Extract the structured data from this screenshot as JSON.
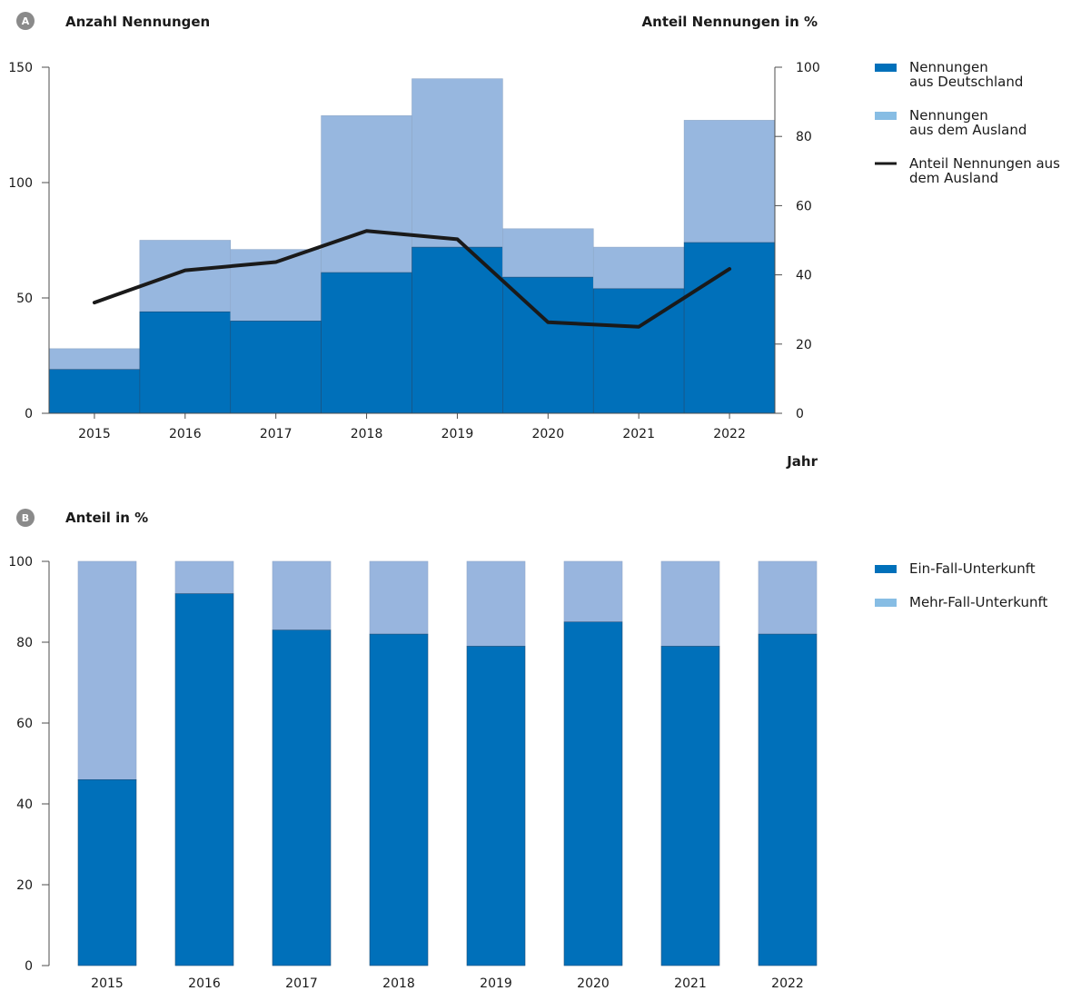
{
  "colors": {
    "dark_blue": "#0070ba",
    "light_blue": "#97b7df",
    "light_blue_b": "#98b5de",
    "legend_light": "#87bde4",
    "line": "#1a1a1a",
    "axis": "#4d4d4d",
    "badge": "#8a8a8a"
  },
  "chart_data": [
    {
      "type": "bar",
      "panel_label": "A",
      "title": "Anzahl Nennungen",
      "ylabel": "",
      "y2label": "Anteil Nennungen in %",
      "xlabel": "Jahr",
      "stacked": true,
      "categories": [
        "2015",
        "2016",
        "2017",
        "2018",
        "2019",
        "2020",
        "2021",
        "2022"
      ],
      "ylim": [
        0,
        150
      ],
      "y_ticks": [
        "0",
        "50",
        "100",
        "150"
      ],
      "y2lim": [
        0,
        100
      ],
      "y2_ticks": [
        "0",
        "20",
        "40",
        "60",
        "80",
        "100"
      ],
      "series": [
        {
          "name": "Nennungen aus Deutschland",
          "name_lines": [
            "Nennungen",
            "aus Deutschland"
          ],
          "values": [
            19,
            44,
            40,
            61,
            72,
            59,
            54,
            74
          ]
        },
        {
          "name": "Nennungen aus dem Ausland",
          "name_lines": [
            "Nennungen",
            "aus dem Ausland"
          ],
          "values": [
            9,
            31,
            31,
            68,
            73,
            21,
            18,
            53
          ]
        },
        {
          "name": "Anteil Nennungen aus dem Ausland",
          "name_lines": [
            "Anteil Nennungen aus",
            "dem Ausland"
          ],
          "type": "line",
          "axis": "right",
          "values": [
            32,
            41.3,
            43.7,
            52.7,
            50.3,
            26.3,
            25,
            41.7
          ]
        }
      ],
      "grid": false,
      "legend": "right"
    },
    {
      "type": "bar",
      "panel_label": "B",
      "title": "Anteil in %",
      "stacked": true,
      "categories": [
        "2015",
        "2016",
        "2017",
        "2018",
        "2019",
        "2020",
        "2021",
        "2022"
      ],
      "ylim": [
        0,
        100
      ],
      "y_ticks": [
        "0",
        "20",
        "40",
        "60",
        "80",
        "100"
      ],
      "series": [
        {
          "name": "Ein-Fall-Unterkunft",
          "values": [
            46,
            92,
            83,
            82,
            79,
            85,
            79,
            82
          ]
        },
        {
          "name": "Mehr-Fall-Unterkunft",
          "values": [
            54,
            8,
            17,
            18,
            21,
            15,
            21,
            18
          ]
        }
      ],
      "grid": false,
      "legend": "right"
    }
  ]
}
